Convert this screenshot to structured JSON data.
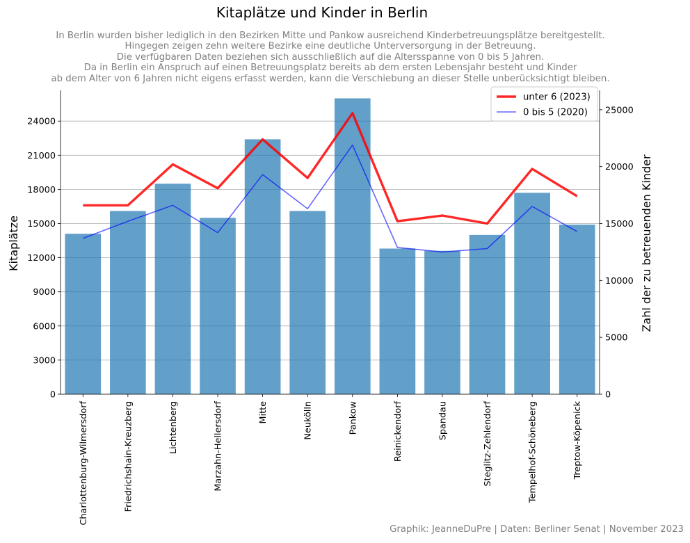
{
  "chart_data": {
    "type": "bar",
    "title": "Kitaplätze und Kinder in Berlin",
    "subtitle_lines": [
      "In Berlin wurden bisher lediglich in den Bezirken Mitte und Pankow ausreichend Kinderbetreuungsplätze bereitgestellt.",
      "Hingegen zeigen zehn weitere Bezirke eine deutliche Unterversorgung in der Betreuung.",
      "Die verfügbaren Daten beziehen sich ausschließlich auf die Altersspanne von 0 bis 5 Jahren.",
      "Da in Berlin ein Anspruch auf einen Betreuungsplatz bereits ab dem ersten Lebensjahr besteht und Kinder",
      "ab dem Alter von 6 Jahren nicht eigens erfasst werden, kann die Verschiebung an dieser Stelle unberücksichtigt bleiben."
    ],
    "footer": "Graphik: JeanneDuPre | Daten: Berliner Senat | November 2023",
    "categories": [
      "Charlottenburg-Wilmersdorf",
      "Friedrichshain-Kreuzberg",
      "Lichtenberg",
      "Marzahn-Hellersdorf",
      "Mitte",
      "Neukölln",
      "Pankow",
      "Reinickendorf",
      "Spandau",
      "Steglitz-Zehlendorf",
      "Tempelhof-Schöneberg",
      "Treptow-Köpenick"
    ],
    "ylabel_left": "Kitaplätze",
    "ylabel_right": "Zahl der zu betreuenden Kinder",
    "ylim_left": [
      0,
      26700
    ],
    "ylim_right": [
      0,
      26700
    ],
    "yticks_left": [
      0,
      3000,
      6000,
      9000,
      12000,
      15000,
      18000,
      21000,
      24000
    ],
    "yticks_right": [
      0,
      5000,
      10000,
      15000,
      20000,
      25000
    ],
    "grid": "horizontal (left axis)",
    "bar_color": "#1f77b4",
    "bars": {
      "name": "Kitaplätze",
      "values": [
        14100,
        16100,
        18500,
        15500,
        22400,
        16100,
        26000,
        12800,
        12600,
        14000,
        17700,
        14900
      ]
    },
    "series": [
      {
        "name": "unter 6 (2023)",
        "axis": "right",
        "color": "#ff0000",
        "values": [
          16600,
          16600,
          20200,
          18100,
          22400,
          19000,
          24700,
          15200,
          15700,
          15000,
          19800,
          17400
        ]
      },
      {
        "name": "0 bis 5 (2020)",
        "axis": "right",
        "color": "#0000ff",
        "values": [
          13700,
          15200,
          16600,
          14200,
          19300,
          16300,
          21900,
          12900,
          12500,
          12800,
          16500,
          14300
        ]
      }
    ],
    "legend": "top-right"
  }
}
